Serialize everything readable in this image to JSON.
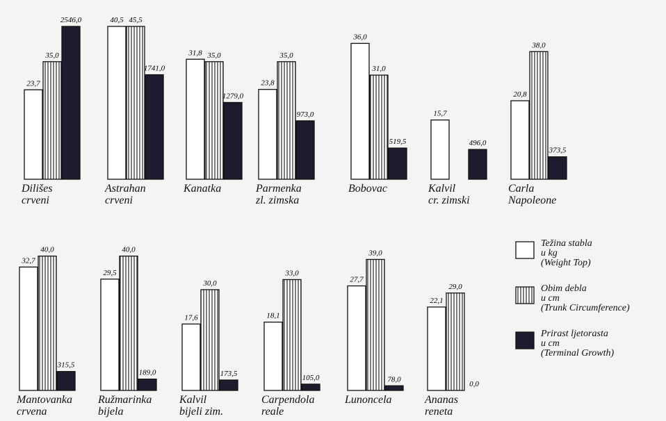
{
  "chart_data": {
    "type": "bar",
    "categories": [
      "Dilišes\ncrveni",
      "Astrahan\ncrveni",
      "Kanatka",
      "Parmenka\nzl. zimska",
      "Bobovac",
      "Kalvil\ncr. zimski",
      "Carla\nNapoleone",
      "Mantovanka\ncrvena",
      "Ružmarinka\nbijela",
      "Kalvil\nbijeli zim.",
      "Carpendola\nreale",
      "Lunoncela",
      "Ananas\nreneta"
    ],
    "series": [
      {
        "name": "Težina stabla\nu kg\n(Weight Top)",
        "color": "#ffffff",
        "hatch": false,
        "values": [
          23.7,
          40.5,
          31.8,
          23.8,
          36.0,
          15.7,
          20.8,
          32.7,
          29.5,
          17.6,
          18.1,
          27.7,
          22.1
        ],
        "value_labels": [
          "23,7",
          "40,5",
          "31,8",
          "23,8",
          "36,0",
          "15,7",
          "20,8",
          "32,7",
          "29,5",
          "17,6",
          "18,1",
          "27,7",
          "22,1"
        ]
      },
      {
        "name": "Obim debla\nu cm\n(Trunk Circumference)",
        "color": "#444444",
        "hatch": true,
        "values": [
          35.0,
          45.5,
          35.0,
          35.0,
          31.0,
          null,
          38.0,
          40.0,
          40.0,
          30.0,
          33.0,
          39.0,
          29.0
        ],
        "value_labels": [
          "35,0",
          "45,5",
          "35,0",
          "35,0",
          "31,0",
          null,
          "38,0",
          "40,0",
          "40,0",
          "30,0",
          "33,0",
          "39,0",
          "29,0"
        ]
      },
      {
        "name": "Prirast ljetorasta\nu cm\n(Terminal Growth)",
        "color": "#1c1c2e",
        "hatch": false,
        "values": [
          2546.0,
          1741.0,
          1279.0,
          973.0,
          519.5,
          496.0,
          373.5,
          315.5,
          189.0,
          173.5,
          105.0,
          78.0,
          0.0
        ],
        "value_labels": [
          "2546,0",
          "1741,0",
          "1279,0",
          "973,0",
          "519,5",
          "496,0",
          "373,5",
          "315,5",
          "189,0",
          "173,5",
          "105,0",
          "78,0",
          "0,0"
        ]
      }
    ]
  }
}
